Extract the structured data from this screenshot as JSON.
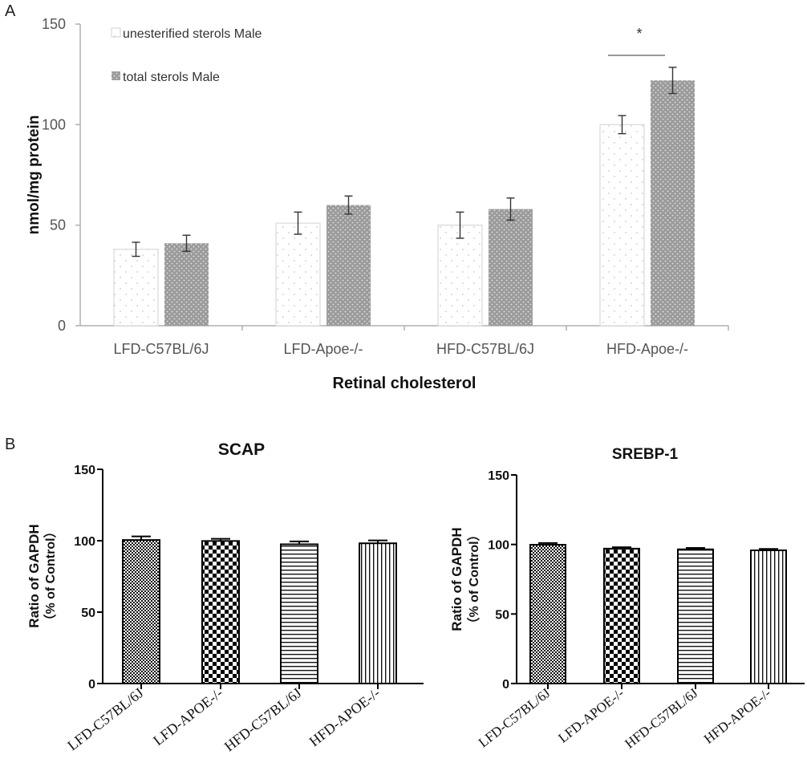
{
  "panel_labels": {
    "a": "A",
    "b": "B"
  },
  "colors": {
    "light_bar": "#ffffff",
    "light_bar_stroke": "#d8d8d8",
    "dark_bar": "#9b9b9b",
    "axis_a": "#b0b0b0",
    "text_a": "#555555",
    "sig_line": "#999999"
  },
  "chart_data": [
    {
      "type": "bar",
      "id": "A",
      "title": "",
      "xlabel": "Retinal cholesterol",
      "ylabel": "nmol/mg protein",
      "ylim": [
        0,
        150
      ],
      "yticks": [
        0,
        50,
        100,
        150
      ],
      "categories": [
        "LFD-C57BL/6J",
        "LFD-Apoe-/-",
        "HFD-C57BL/6J",
        "HFD-Apoe-/-"
      ],
      "series": [
        {
          "name": "unesterified sterols Male",
          "values": [
            38,
            51,
            50,
            100
          ],
          "errors": [
            3.5,
            5.5,
            6.5,
            4.5
          ],
          "pattern": "light-dots"
        },
        {
          "name": "total sterols Male",
          "values": [
            41,
            60,
            58,
            122
          ],
          "errors": [
            4,
            4.5,
            5.5,
            6.5
          ],
          "pattern": "dark-dots"
        }
      ],
      "legend": "top-left",
      "annotations": [
        {
          "text": "*",
          "category": "HFD-Apoe-/-"
        }
      ]
    },
    {
      "type": "bar",
      "id": "B-left",
      "title": "SCAP",
      "xlabel": "",
      "ylabel": "Ratio of GAPDH",
      "ylabel2": "（% of Control）",
      "ylim": [
        0,
        150
      ],
      "yticks": [
        0,
        50,
        100,
        150
      ],
      "categories": [
        "LFD-C57BL/6J",
        "LFD-APOE-/-",
        "HFD-C57BL/6J",
        "HFD-APOE-/-"
      ],
      "values": [
        100.5,
        99.8,
        97.5,
        98.2
      ],
      "errors": [
        2.5,
        1.5,
        2.0,
        2.0
      ],
      "patterns": [
        "fine-check",
        "checker",
        "horizontal",
        "vertical"
      ]
    },
    {
      "type": "bar",
      "id": "B-right",
      "title": "SREBP-1",
      "xlabel": "",
      "ylabel": "Ratio of GAPDH",
      "ylabel2": "（% of Control）",
      "ylim": [
        0,
        150
      ],
      "yticks": [
        0,
        50,
        100,
        150
      ],
      "categories": [
        "LFD-C57BL/6J",
        "LFD-APOE-/-",
        "HFD-C57BL/6J",
        "HFD-APOE-/-"
      ],
      "values": [
        99.8,
        97.0,
        96.5,
        95.8
      ],
      "errors": [
        1.2,
        1.0,
        1.0,
        1.0
      ],
      "patterns": [
        "fine-check",
        "checker",
        "horizontal",
        "vertical"
      ]
    }
  ]
}
